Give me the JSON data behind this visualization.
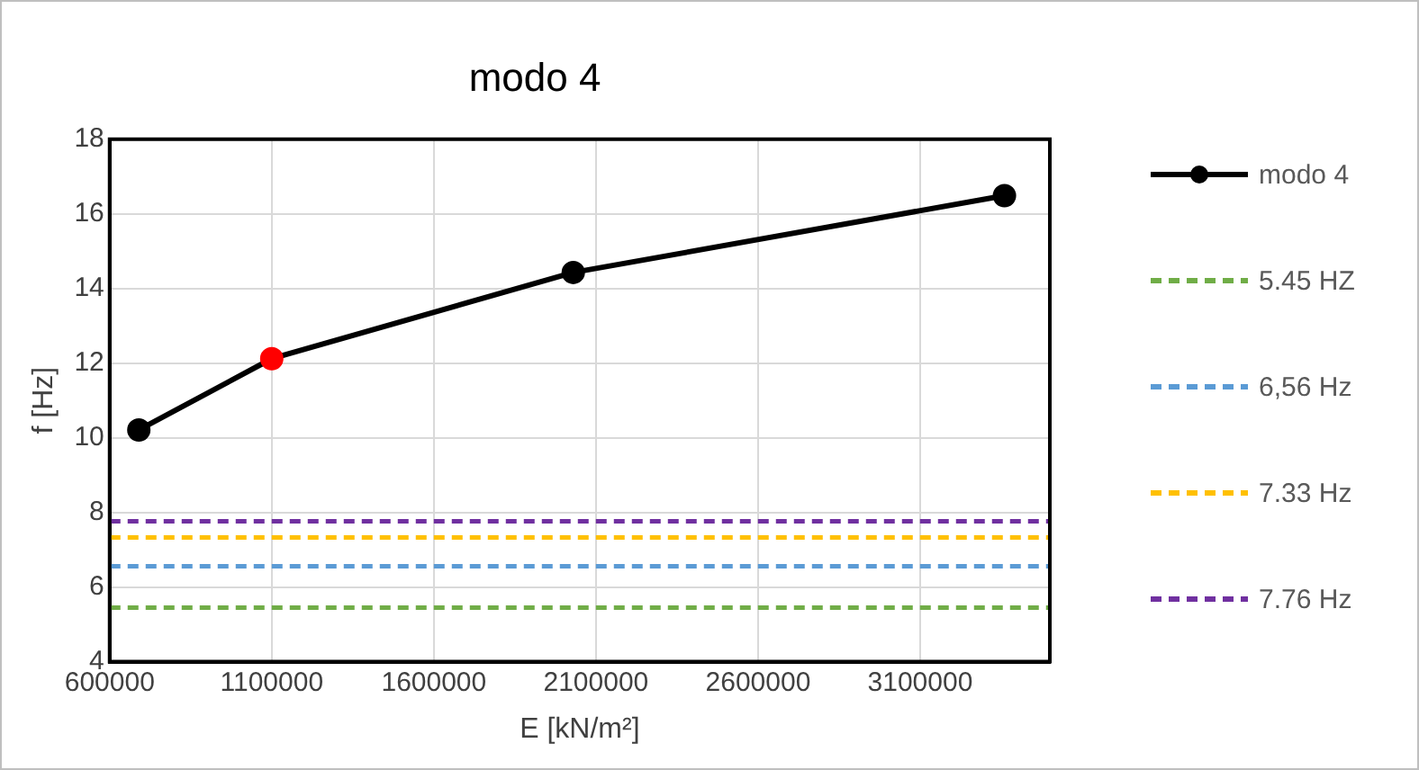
{
  "chart_data": {
    "type": "line",
    "title": "modo 4",
    "xlabel": "E [kN/m²]",
    "ylabel": "f [Hz]",
    "xlim": [
      600000,
      3500000
    ],
    "xticks": [
      600000,
      1100000,
      1600000,
      2100000,
      2600000,
      3100000
    ],
    "ylim": [
      4,
      18
    ],
    "yticks": [
      4,
      6,
      8,
      10,
      12,
      14,
      16,
      18
    ],
    "grid": true,
    "legend": "right",
    "series": [
      {
        "name": "modo 4",
        "color": "#000000",
        "x": [
          690000,
          1100000,
          2030000,
          3360000
        ],
        "values": [
          10.21,
          12.12,
          14.43,
          16.49
        ],
        "colors": [
          "#000000",
          "#ff0000",
          "#000000",
          "#000000"
        ],
        "line_style": "solid",
        "marker": "circle"
      },
      {
        "name": "5.45 HZ",
        "color": "#70ad47",
        "x": [
          600000,
          3500000
        ],
        "values": [
          5.45,
          5.45
        ],
        "line_style": "dashed",
        "marker": "none"
      },
      {
        "name": "6,56 Hz",
        "color": "#5b9bd5",
        "x": [
          600000,
          3500000
        ],
        "values": [
          6.56,
          6.56
        ],
        "line_style": "dashed",
        "marker": "none"
      },
      {
        "name": "7.33 Hz",
        "color": "#ffc000",
        "x": [
          600000,
          3500000
        ],
        "values": [
          7.33,
          7.33
        ],
        "line_style": "dashed",
        "marker": "none"
      },
      {
        "name": "7.76 Hz",
        "color": "#7030a0",
        "x": [
          600000,
          3500000
        ],
        "values": [
          7.76,
          7.76
        ],
        "line_style": "dashed",
        "marker": "none"
      }
    ]
  }
}
